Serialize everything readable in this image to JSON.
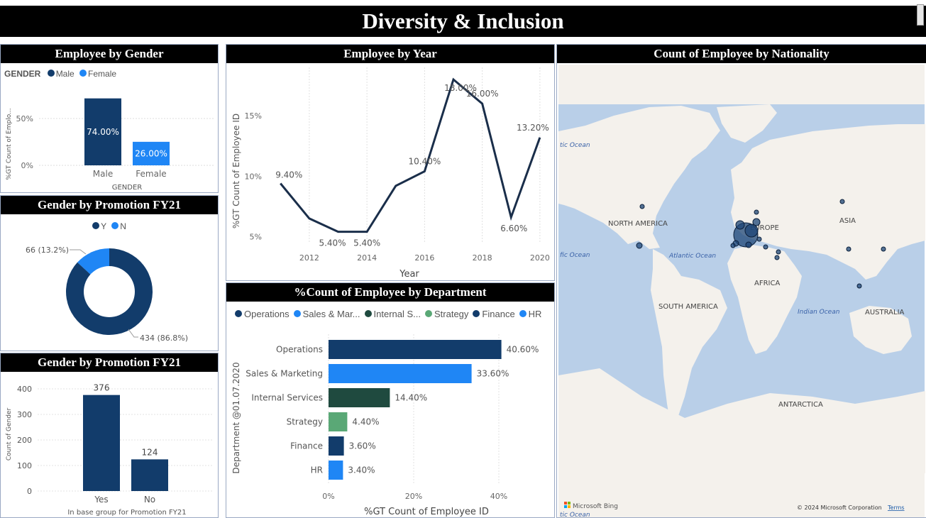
{
  "header": {
    "title": "Diversity & Inclusion"
  },
  "colors": {
    "dark_blue": "#123c6b",
    "light_blue": "#1f86f5",
    "dark_green": "#1f4a3f",
    "green": "#5aa876",
    "line": "#1a2e4a",
    "ocean": "#b9cfe8",
    "land": "#f4f1ec"
  },
  "gender_panel": {
    "title": "Employee by Gender",
    "legend_title": "GENDER",
    "legend": [
      "Male",
      "Female"
    ],
    "ylabel": "%GT Count of Emplo...",
    "xlabel": "GENDER",
    "yticks": [
      "50%",
      "0%"
    ]
  },
  "promo_donut_panel": {
    "title": "Gender by Promotion FY21",
    "legend": [
      "Y",
      "N"
    ],
    "label_n": "66 (13.2%)",
    "label_y": "434 (86.8%)"
  },
  "promo_bar_panel": {
    "title": "Gender by Promotion FY21",
    "ylabel": "Count of Gender",
    "xlabel": "In base group for Promotion FY21",
    "yticks": [
      "400",
      "300",
      "200",
      "100",
      "0"
    ]
  },
  "year_panel": {
    "title": "Employee by Year",
    "ylabel": "%GT Count of Employee ID",
    "xlabel": "Year",
    "yticks": [
      "15%",
      "10%",
      "5%"
    ],
    "xticks": [
      "2012",
      "2014",
      "2016",
      "2018",
      "2020"
    ]
  },
  "dept_panel": {
    "title": "%Count of Employee by Department",
    "legend": [
      "Operations",
      "Sales & Mar...",
      "Internal S...",
      "Strategy",
      "Finance",
      "HR"
    ],
    "ylabel": "Department @01.07.2020",
    "xlabel": "%GT Count of Employee ID",
    "xticks": [
      "0%",
      "20%",
      "40%"
    ]
  },
  "map_panel": {
    "title": "Count of Employee by Nationality",
    "labels": {
      "north_america": "NORTH AMERICA",
      "europe": "EUROPE",
      "asia": "ASIA",
      "africa": "AFRICA",
      "south_america": "SOUTH AMERICA",
      "australia": "AUSTRALIA",
      "antarctica": "ANTARCTICA",
      "atlantic": "Atlantic Ocean",
      "indian": "Indian Ocean",
      "pacific_top": "tic Ocean",
      "pacific_mid": "fic Ocean",
      "pacific_bottom": "tic Ocean"
    },
    "bing": "Microsoft Bing",
    "copyright": "© 2024 Microsoft Corporation",
    "terms": "Terms"
  },
  "chart_data": [
    {
      "type": "bar",
      "title": "Employee by Gender",
      "categories": [
        "Male",
        "Female"
      ],
      "values": [
        74.0,
        26.0
      ],
      "labels": [
        "74.00%",
        "26.00%"
      ],
      "colors": [
        "#123c6b",
        "#1f86f5"
      ],
      "ylim": [
        0,
        80
      ]
    },
    {
      "type": "pie",
      "title": "Gender by Promotion FY21",
      "categories": [
        "Y",
        "N"
      ],
      "values": [
        434,
        66
      ],
      "colors": [
        "#123c6b",
        "#1f86f5"
      ]
    },
    {
      "type": "bar",
      "title": "Gender by Promotion FY21",
      "categories": [
        "Yes",
        "No"
      ],
      "values": [
        376,
        124
      ],
      "labels": [
        "376",
        "124"
      ],
      "ylim": [
        0,
        420
      ]
    },
    {
      "type": "line",
      "title": "Employee by Year",
      "x": [
        2011,
        2012,
        2013,
        2014,
        2015,
        2016,
        2017,
        2018,
        2019,
        2020
      ],
      "values": [
        9.4,
        6.5,
        5.4,
        5.4,
        9.2,
        10.4,
        18.0,
        16.0,
        6.6,
        13.2
      ],
      "labels": [
        "9.40%",
        "",
        "5.40%",
        "5.40%",
        "",
        "10.40%",
        "18.00%",
        "16.00%",
        "6.60%",
        "13.20%"
      ],
      "ylim": [
        3.5,
        19
      ],
      "xlim": [
        2010.6,
        2020.2
      ]
    },
    {
      "type": "bar",
      "title": "%Count of Employee by Department",
      "categories": [
        "Operations",
        "Sales & Marketing",
        "Internal Services",
        "Strategy",
        "Finance",
        "HR"
      ],
      "values": [
        40.6,
        33.6,
        14.4,
        4.4,
        3.6,
        3.4
      ],
      "labels": [
        "40.60%",
        "33.60%",
        "14.40%",
        "4.40%",
        "3.60%",
        "3.40%"
      ],
      "colors": [
        "#123c6b",
        "#1f86f5",
        "#1f4a3f",
        "#5aa876",
        "#123c6b",
        "#1f86f5"
      ],
      "xlim": [
        0,
        42
      ]
    }
  ]
}
